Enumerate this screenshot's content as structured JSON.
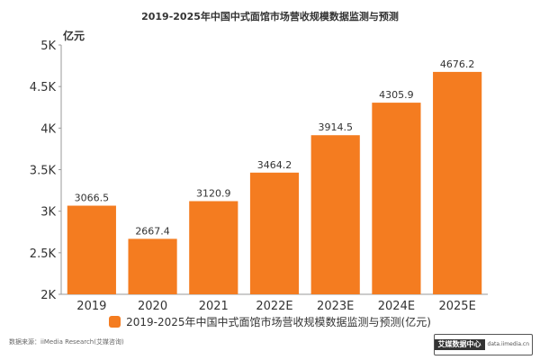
{
  "chart_data": {
    "type": "bar",
    "title": "2019-2025年中国中式面馆市场营收规模数据监测与预测",
    "unit_label": "亿元",
    "categories": [
      "2019",
      "2020",
      "2021",
      "2022E",
      "2023E",
      "2024E",
      "2025E"
    ],
    "series": [
      {
        "name": "2019-2025年中国中式面馆市场营收规模数据监测与预测(亿元)",
        "values": [
          3066.5,
          2667.4,
          3120.9,
          3464.2,
          3914.5,
          4305.9,
          4676.2
        ],
        "labels": [
          "3066.5",
          "2667.4",
          "3120.9",
          "3464.2",
          "3914.5",
          "4305.9",
          "4676.2"
        ]
      }
    ],
    "ylim": [
      2000,
      5000
    ],
    "yticks": [
      2000,
      2500,
      3000,
      3500,
      4000,
      4500,
      5000
    ],
    "ytick_labels": [
      "2K",
      "2.5K",
      "3K",
      "3.5K",
      "4K",
      "4.5K",
      "5K"
    ],
    "grid": false,
    "legend_position": "bottom",
    "bar_color": "#F47C20"
  },
  "source": "数据来源：iiMedia Research(艾媒咨询)",
  "logo": {
    "main": "艾媒数据中心",
    "sub": "data.iimedia.cn"
  }
}
